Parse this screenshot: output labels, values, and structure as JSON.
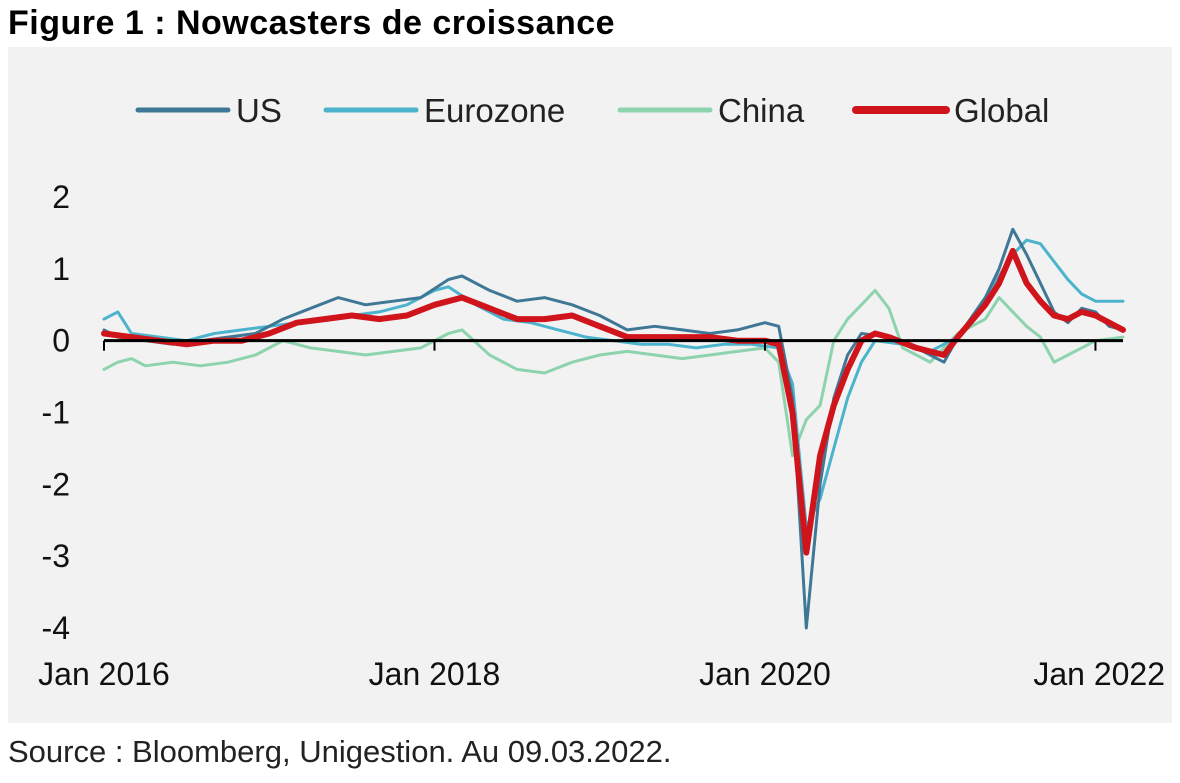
{
  "title": "Figure 1 : Nowcasters de croissance",
  "source": "Source : Bloomberg, Unigestion. Au 09.03.2022.",
  "chart_data": {
    "type": "line",
    "title": "",
    "xlabel": "",
    "ylabel": "",
    "ylim": [
      -4,
      2
    ],
    "xlim": [
      "2016-01",
      "2022-03"
    ],
    "y_ticks": [
      "2",
      "1",
      "0",
      "-1",
      "-2",
      "-3",
      "-4"
    ],
    "x_ticks": [
      "Jan 2016",
      "Jan 2018",
      "Jan 2020",
      "Jan 2022"
    ],
    "grid": false,
    "legend": "top",
    "series": [
      {
        "name": "US",
        "color": "#3f7896",
        "points": [
          [
            "2016-01",
            0.15
          ],
          [
            "2016-02",
            0.05
          ],
          [
            "2016-04",
            0.0
          ],
          [
            "2016-06",
            -0.05
          ],
          [
            "2016-08",
            0.0
          ],
          [
            "2016-10",
            0.05
          ],
          [
            "2016-12",
            0.1
          ],
          [
            "2017-02",
            0.3
          ],
          [
            "2017-04",
            0.45
          ],
          [
            "2017-06",
            0.6
          ],
          [
            "2017-08",
            0.5
          ],
          [
            "2017-10",
            0.55
          ],
          [
            "2017-12",
            0.6
          ],
          [
            "2018-02",
            0.85
          ],
          [
            "2018-03",
            0.9
          ],
          [
            "2018-05",
            0.7
          ],
          [
            "2018-07",
            0.55
          ],
          [
            "2018-09",
            0.6
          ],
          [
            "2018-11",
            0.5
          ],
          [
            "2019-01",
            0.35
          ],
          [
            "2019-03",
            0.15
          ],
          [
            "2019-05",
            0.2
          ],
          [
            "2019-07",
            0.15
          ],
          [
            "2019-09",
            0.1
          ],
          [
            "2019-11",
            0.15
          ],
          [
            "2020-01",
            0.25
          ],
          [
            "2020-02",
            0.2
          ],
          [
            "2020-03",
            -0.8
          ],
          [
            "2020-04",
            -4.0
          ],
          [
            "2020-05",
            -2.0
          ],
          [
            "2020-06",
            -0.8
          ],
          [
            "2020-07",
            -0.2
          ],
          [
            "2020-08",
            0.1
          ],
          [
            "2020-10",
            0.05
          ],
          [
            "2020-12",
            -0.1
          ],
          [
            "2021-02",
            -0.3
          ],
          [
            "2021-03",
            0.05
          ],
          [
            "2021-05",
            0.6
          ],
          [
            "2021-06",
            1.0
          ],
          [
            "2021-07",
            1.55
          ],
          [
            "2021-08",
            1.2
          ],
          [
            "2021-09",
            0.8
          ],
          [
            "2021-10",
            0.4
          ],
          [
            "2021-11",
            0.25
          ],
          [
            "2021-12",
            0.45
          ],
          [
            "2022-01",
            0.4
          ],
          [
            "2022-02",
            0.2
          ],
          [
            "2022-03",
            0.15
          ]
        ]
      },
      {
        "name": "Eurozone",
        "color": "#4bb3cc",
        "points": [
          [
            "2016-01",
            0.3
          ],
          [
            "2016-02",
            0.4
          ],
          [
            "2016-03",
            0.1
          ],
          [
            "2016-05",
            0.05
          ],
          [
            "2016-07",
            0.0
          ],
          [
            "2016-09",
            0.1
          ],
          [
            "2016-11",
            0.15
          ],
          [
            "2017-01",
            0.2
          ],
          [
            "2017-03",
            0.25
          ],
          [
            "2017-05",
            0.3
          ],
          [
            "2017-07",
            0.35
          ],
          [
            "2017-09",
            0.4
          ],
          [
            "2017-11",
            0.5
          ],
          [
            "2018-01",
            0.7
          ],
          [
            "2018-02",
            0.75
          ],
          [
            "2018-04",
            0.5
          ],
          [
            "2018-06",
            0.3
          ],
          [
            "2018-08",
            0.25
          ],
          [
            "2018-10",
            0.15
          ],
          [
            "2018-12",
            0.05
          ],
          [
            "2019-02",
            0.0
          ],
          [
            "2019-04",
            -0.05
          ],
          [
            "2019-06",
            -0.05
          ],
          [
            "2019-08",
            -0.1
          ],
          [
            "2019-10",
            -0.05
          ],
          [
            "2019-12",
            -0.05
          ],
          [
            "2020-02",
            -0.1
          ],
          [
            "2020-03",
            -0.6
          ],
          [
            "2020-04",
            -2.6
          ],
          [
            "2020-05",
            -2.2
          ],
          [
            "2020-06",
            -1.5
          ],
          [
            "2020-07",
            -0.8
          ],
          [
            "2020-08",
            -0.3
          ],
          [
            "2020-09",
            0.0
          ],
          [
            "2020-11",
            -0.05
          ],
          [
            "2021-01",
            -0.15
          ],
          [
            "2021-03",
            0.05
          ],
          [
            "2021-05",
            0.6
          ],
          [
            "2021-07",
            1.2
          ],
          [
            "2021-08",
            1.4
          ],
          [
            "2021-09",
            1.35
          ],
          [
            "2021-10",
            1.1
          ],
          [
            "2021-11",
            0.85
          ],
          [
            "2021-12",
            0.65
          ],
          [
            "2022-01",
            0.55
          ],
          [
            "2022-03",
            0.55
          ]
        ]
      },
      {
        "name": "China",
        "color": "#8dd3ae",
        "points": [
          [
            "2016-01",
            -0.4
          ],
          [
            "2016-02",
            -0.3
          ],
          [
            "2016-03",
            -0.25
          ],
          [
            "2016-04",
            -0.35
          ],
          [
            "2016-06",
            -0.3
          ],
          [
            "2016-08",
            -0.35
          ],
          [
            "2016-10",
            -0.3
          ],
          [
            "2016-12",
            -0.2
          ],
          [
            "2017-02",
            0.0
          ],
          [
            "2017-04",
            -0.1
          ],
          [
            "2017-06",
            -0.15
          ],
          [
            "2017-08",
            -0.2
          ],
          [
            "2017-10",
            -0.15
          ],
          [
            "2017-12",
            -0.1
          ],
          [
            "2018-02",
            0.1
          ],
          [
            "2018-03",
            0.15
          ],
          [
            "2018-05",
            -0.2
          ],
          [
            "2018-07",
            -0.4
          ],
          [
            "2018-09",
            -0.45
          ],
          [
            "2018-11",
            -0.3
          ],
          [
            "2019-01",
            -0.2
          ],
          [
            "2019-03",
            -0.15
          ],
          [
            "2019-05",
            -0.2
          ],
          [
            "2019-07",
            -0.25
          ],
          [
            "2019-09",
            -0.2
          ],
          [
            "2019-11",
            -0.15
          ],
          [
            "2020-01",
            -0.1
          ],
          [
            "2020-02",
            -0.3
          ],
          [
            "2020-03",
            -1.6
          ],
          [
            "2020-04",
            -1.1
          ],
          [
            "2020-05",
            -0.9
          ],
          [
            "2020-06",
            0.0
          ],
          [
            "2020-07",
            0.3
          ],
          [
            "2020-08",
            0.5
          ],
          [
            "2020-09",
            0.7
          ],
          [
            "2020-10",
            0.45
          ],
          [
            "2020-11",
            -0.1
          ],
          [
            "2020-12",
            -0.2
          ],
          [
            "2021-01",
            -0.3
          ],
          [
            "2021-03",
            0.1
          ],
          [
            "2021-05",
            0.3
          ],
          [
            "2021-06",
            0.6
          ],
          [
            "2021-07",
            0.4
          ],
          [
            "2021-08",
            0.2
          ],
          [
            "2021-09",
            0.05
          ],
          [
            "2021-10",
            -0.3
          ],
          [
            "2021-11",
            -0.2
          ],
          [
            "2021-12",
            -0.1
          ],
          [
            "2022-01",
            0.0
          ],
          [
            "2022-03",
            0.05
          ]
        ]
      },
      {
        "name": "Global",
        "color": "#d0141c",
        "points": [
          [
            "2016-01",
            0.1
          ],
          [
            "2016-03",
            0.05
          ],
          [
            "2016-05",
            0.0
          ],
          [
            "2016-07",
            -0.05
          ],
          [
            "2016-09",
            0.0
          ],
          [
            "2016-11",
            0.0
          ],
          [
            "2017-01",
            0.1
          ],
          [
            "2017-03",
            0.25
          ],
          [
            "2017-05",
            0.3
          ],
          [
            "2017-07",
            0.35
          ],
          [
            "2017-09",
            0.3
          ],
          [
            "2017-11",
            0.35
          ],
          [
            "2018-01",
            0.5
          ],
          [
            "2018-03",
            0.6
          ],
          [
            "2018-05",
            0.45
          ],
          [
            "2018-07",
            0.3
          ],
          [
            "2018-09",
            0.3
          ],
          [
            "2018-11",
            0.35
          ],
          [
            "2019-01",
            0.2
          ],
          [
            "2019-03",
            0.05
          ],
          [
            "2019-05",
            0.05
          ],
          [
            "2019-07",
            0.05
          ],
          [
            "2019-09",
            0.05
          ],
          [
            "2019-11",
            0.0
          ],
          [
            "2020-01",
            0.0
          ],
          [
            "2020-02",
            -0.05
          ],
          [
            "2020-03",
            -1.0
          ],
          [
            "2020-04",
            -2.95
          ],
          [
            "2020-05",
            -1.6
          ],
          [
            "2020-06",
            -0.9
          ],
          [
            "2020-07",
            -0.4
          ],
          [
            "2020-08",
            0.0
          ],
          [
            "2020-09",
            0.1
          ],
          [
            "2020-10",
            0.05
          ],
          [
            "2020-12",
            -0.1
          ],
          [
            "2021-02",
            -0.2
          ],
          [
            "2021-03",
            0.05
          ],
          [
            "2021-05",
            0.5
          ],
          [
            "2021-06",
            0.8
          ],
          [
            "2021-07",
            1.25
          ],
          [
            "2021-08",
            0.8
          ],
          [
            "2021-09",
            0.55
          ],
          [
            "2021-10",
            0.35
          ],
          [
            "2021-11",
            0.3
          ],
          [
            "2021-12",
            0.4
          ],
          [
            "2022-01",
            0.35
          ],
          [
            "2022-02",
            0.25
          ],
          [
            "2022-03",
            0.15
          ]
        ]
      }
    ]
  }
}
